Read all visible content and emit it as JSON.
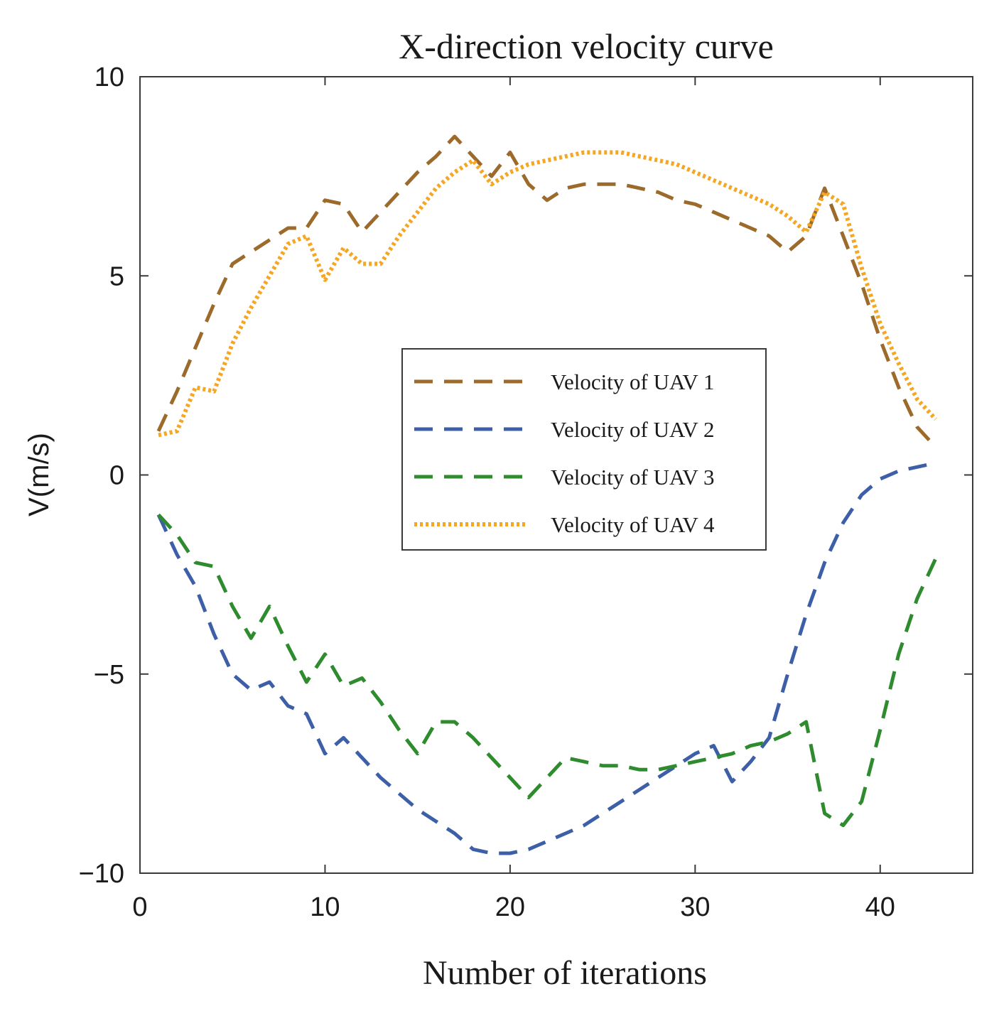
{
  "chart_data": {
    "type": "line",
    "title": "X-direction velocity curve",
    "xlabel": "Number of iterations",
    "ylabel": "V(m/s)",
    "xlim": [
      0,
      45
    ],
    "ylim": [
      -10,
      10
    ],
    "xticks": [
      0,
      10,
      20,
      30,
      40
    ],
    "yticks": [
      -10,
      -5,
      0,
      5,
      10
    ],
    "xtick_labels": [
      "0",
      "10",
      "20",
      "30",
      "40"
    ],
    "ytick_labels": [
      "−10",
      "−5",
      "0",
      "5",
      "10"
    ],
    "grid": false,
    "legend_position": "center-right",
    "series": [
      {
        "name": "Velocity of UAV 1",
        "color": "#9c6a2a",
        "style": "dashed",
        "x": [
          1,
          2,
          3,
          4,
          5,
          6,
          7,
          8,
          9,
          10,
          11,
          12,
          13,
          14,
          15,
          16,
          17,
          18,
          19,
          20,
          21,
          22,
          23,
          24,
          25,
          26,
          27,
          28,
          29,
          30,
          31,
          32,
          33,
          34,
          35,
          36,
          37,
          38,
          39,
          40,
          41,
          42,
          43
        ],
        "values": [
          1.1,
          2.1,
          3.2,
          4.3,
          5.3,
          5.6,
          5.9,
          6.2,
          6.2,
          6.9,
          6.8,
          6.1,
          6.6,
          7.1,
          7.6,
          8.0,
          8.5,
          8.0,
          7.5,
          8.1,
          7.3,
          6.9,
          7.2,
          7.3,
          7.3,
          7.3,
          7.2,
          7.1,
          6.9,
          6.8,
          6.6,
          6.4,
          6.2,
          6.0,
          5.6,
          6.0,
          7.2,
          6.0,
          4.8,
          3.4,
          2.2,
          1.2,
          0.7
        ]
      },
      {
        "name": "Velocity of UAV 2",
        "color": "#3d5fa8",
        "style": "dashed",
        "x": [
          1,
          2,
          3,
          4,
          5,
          6,
          7,
          8,
          9,
          10,
          11,
          12,
          13,
          14,
          15,
          16,
          17,
          18,
          19,
          20,
          21,
          22,
          23,
          24,
          25,
          26,
          27,
          28,
          29,
          30,
          31,
          32,
          33,
          34,
          35,
          36,
          37,
          38,
          39,
          40,
          41,
          42,
          43
        ],
        "values": [
          -1.0,
          -2.0,
          -2.8,
          -4.0,
          -5.0,
          -5.4,
          -5.2,
          -5.8,
          -6.0,
          -7.0,
          -6.6,
          -7.1,
          -7.6,
          -8.0,
          -8.4,
          -8.7,
          -9.0,
          -9.4,
          -9.5,
          -9.5,
          -9.4,
          -9.2,
          -9.0,
          -8.8,
          -8.5,
          -8.2,
          -7.9,
          -7.6,
          -7.3,
          -7.0,
          -6.8,
          -7.7,
          -7.2,
          -6.6,
          -5.0,
          -3.5,
          -2.2,
          -1.2,
          -0.5,
          -0.1,
          0.1,
          0.2,
          0.3
        ]
      },
      {
        "name": "Velocity of UAV 3",
        "color": "#2e8b2e",
        "style": "dashed",
        "x": [
          1,
          2,
          3,
          4,
          5,
          6,
          7,
          8,
          9,
          10,
          11,
          12,
          13,
          14,
          15,
          16,
          17,
          18,
          19,
          20,
          21,
          22,
          23,
          24,
          25,
          26,
          27,
          28,
          29,
          30,
          31,
          32,
          33,
          34,
          35,
          36,
          37,
          38,
          39,
          40,
          41,
          42,
          43
        ],
        "values": [
          -1.0,
          -1.5,
          -2.2,
          -2.3,
          -3.3,
          -4.1,
          -3.3,
          -4.3,
          -5.2,
          -4.5,
          -5.3,
          -5.1,
          -5.7,
          -6.4,
          -7.0,
          -6.2,
          -6.2,
          -6.6,
          -7.1,
          -7.6,
          -8.1,
          -7.6,
          -7.1,
          -7.2,
          -7.3,
          -7.3,
          -7.4,
          -7.4,
          -7.3,
          -7.2,
          -7.1,
          -7.0,
          -6.8,
          -6.7,
          -6.5,
          -6.2,
          -8.5,
          -8.8,
          -8.2,
          -6.4,
          -4.5,
          -3.1,
          -2.1
        ]
      },
      {
        "name": "Velocity of UAV 4",
        "color": "#f5a623",
        "style": "dotted",
        "x": [
          1,
          2,
          3,
          4,
          5,
          6,
          7,
          8,
          9,
          10,
          11,
          12,
          13,
          14,
          15,
          16,
          17,
          18,
          19,
          20,
          21,
          22,
          23,
          24,
          25,
          26,
          27,
          28,
          29,
          30,
          31,
          32,
          33,
          34,
          35,
          36,
          37,
          38,
          39,
          40,
          41,
          42,
          43
        ],
        "values": [
          1.0,
          1.1,
          2.2,
          2.1,
          3.3,
          4.2,
          5.0,
          5.8,
          6.0,
          4.9,
          5.7,
          5.3,
          5.3,
          6.0,
          6.6,
          7.2,
          7.6,
          7.9,
          7.3,
          7.6,
          7.8,
          7.9,
          8.0,
          8.1,
          8.1,
          8.1,
          8.0,
          7.9,
          7.8,
          7.6,
          7.4,
          7.2,
          7.0,
          6.8,
          6.5,
          6.1,
          7.1,
          6.8,
          5.2,
          3.8,
          2.8,
          1.9,
          1.4
        ]
      }
    ]
  }
}
